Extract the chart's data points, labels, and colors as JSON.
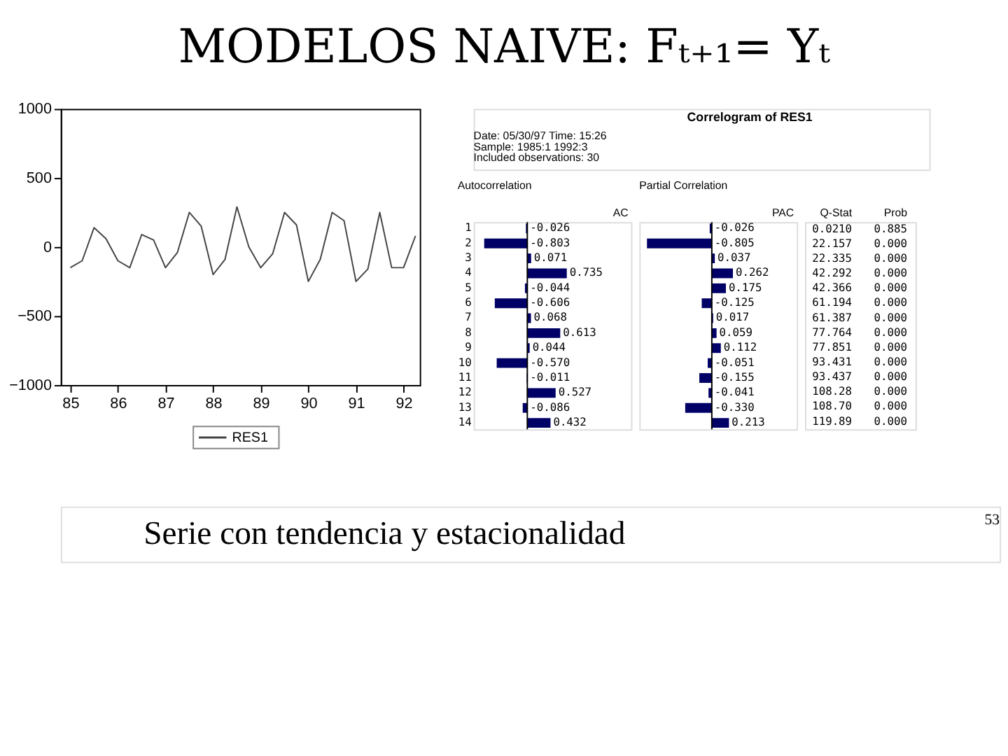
{
  "chart_data": [
    {
      "type": "line",
      "title": "MODELOS NAIVE: Fₜ₊₁= Yₜ",
      "x": [
        85.0,
        85.25,
        85.5,
        85.75,
        86.0,
        86.25,
        86.5,
        86.75,
        87.0,
        87.25,
        87.5,
        87.75,
        88.0,
        88.25,
        88.5,
        88.75,
        89.0,
        89.25,
        89.5,
        89.75,
        90.0,
        90.25,
        90.5,
        90.75,
        91.0,
        91.25,
        91.5,
        91.75,
        92.0,
        92.25
      ],
      "series": [
        {
          "name": "RES1",
          "color": "#444444",
          "values": [
            -150,
            -100,
            140,
            60,
            -100,
            -150,
            90,
            50,
            -150,
            -40,
            250,
            150,
            -200,
            -90,
            290,
            0,
            -150,
            -50,
            250,
            160,
            -250,
            -90,
            250,
            190,
            -250,
            -160,
            250,
            -150,
            -150,
            80
          ]
        }
      ],
      "xlim": [
        84.8,
        92.34
      ],
      "xticks": [
        85,
        86,
        87,
        88,
        89,
        90,
        91,
        92
      ],
      "ylim": [
        -1000,
        1000
      ],
      "yticks": [
        -1000,
        -500,
        0,
        500,
        1000
      ],
      "grid": false,
      "legend": "bottom",
      "line_style": "solid",
      "marker": "none",
      "annotations": [
        "Serie con tendencia y estacionalidad",
        "53"
      ]
    },
    {
      "type": "bar",
      "orientation": "horizontal",
      "title": "Autocorrelation",
      "categories": [
        "1",
        "2",
        "3",
        "4",
        "5",
        "6",
        "7",
        "8",
        "9",
        "10",
        "11",
        "12",
        "13",
        "14"
      ],
      "series": [
        {
          "name": "AC",
          "color": "#000066",
          "values": [
            -0.026,
            -0.803,
            0.071,
            0.735,
            -0.044,
            -0.606,
            0.068,
            0.613,
            0.044,
            -0.57,
            -0.011,
            0.527,
            -0.086,
            0.432
          ],
          "value_labels": [
            "-0.026",
            "-0.803",
            "0.071",
            "0.735",
            "-0.044",
            "-0.606",
            "0.068",
            "0.613",
            "0.044",
            "-0.570",
            "-0.011",
            "0.527",
            "-0.086",
            "0.432"
          ]
        }
      ],
      "tick_labels": "y",
      "annotations": [
        "Correlogram of RES1",
        "Date: 05/30/97   Time: 15:26",
        "Sample: 1985:1 1992:3",
        "Included observations: 30"
      ]
    },
    {
      "type": "bar",
      "orientation": "horizontal",
      "title": "Partial Correlation",
      "categories": [
        null,
        null,
        null,
        null,
        null,
        null,
        null,
        null,
        null,
        null,
        null,
        null,
        null,
        null
      ],
      "series": [
        {
          "name": "PAC",
          "color": "#000066",
          "values": [
            -0.026,
            -0.805,
            0.037,
            0.262,
            0.175,
            -0.125,
            0.017,
            0.059,
            0.112,
            -0.051,
            -0.155,
            -0.041,
            -0.33,
            0.213
          ],
          "value_labels": [
            "-0.026",
            "-0.805",
            "0.037",
            "0.262",
            "0.175",
            "-0.125",
            "0.017",
            "0.059",
            "0.112",
            "-0.051",
            "-0.155",
            "-0.041",
            "-0.330",
            "0.213"
          ]
        }
      ],
      "tick_labels": false
    },
    {
      "type": "other",
      "annotations": [
        "Q-Stat",
        "Prob",
        "0.0210",
        "0.885",
        "22.157",
        "0.000",
        "22.335",
        "0.000",
        "42.292",
        "0.000",
        "42.366",
        "0.000",
        "61.194",
        "0.000",
        "61.387",
        "0.000",
        "77.764",
        "0.000",
        "77.851",
        "0.000",
        "93.431",
        "0.000",
        "93.437",
        "0.000",
        "108.28",
        "0.000",
        "108.70",
        "0.000",
        "119.89",
        "0.000"
      ]
    }
  ]
}
